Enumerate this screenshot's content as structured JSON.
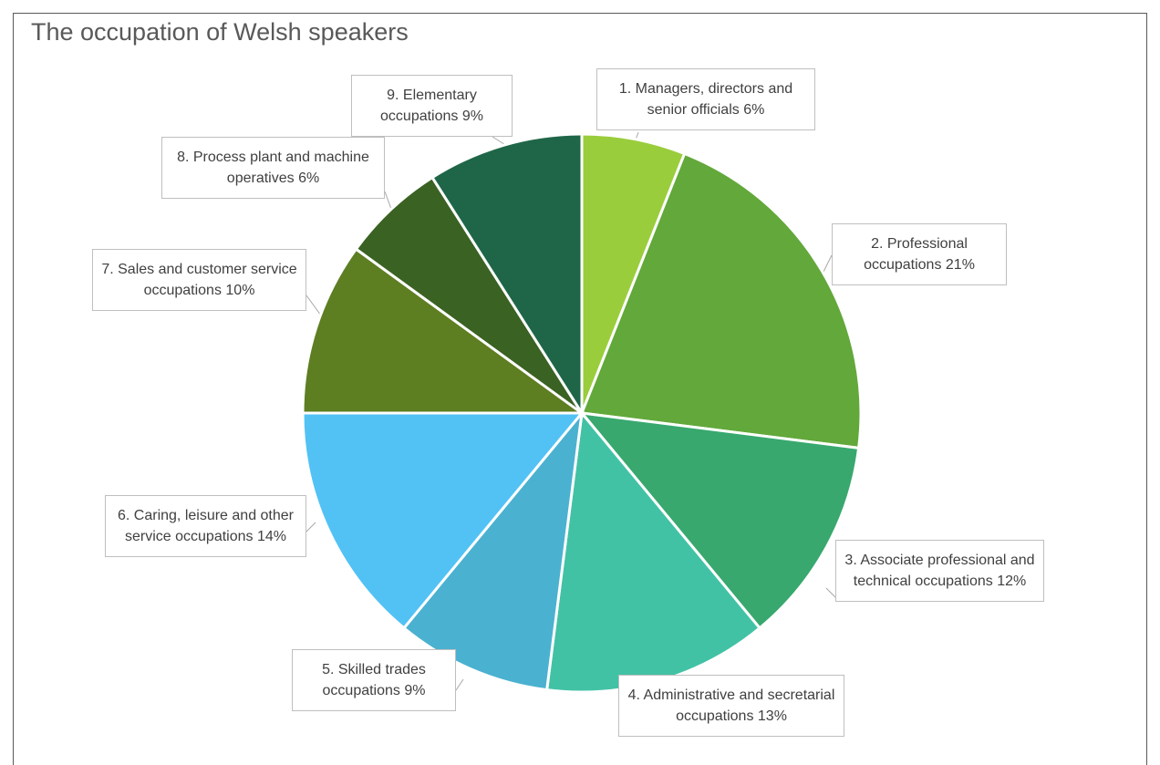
{
  "chart_data": {
    "type": "pie",
    "title": "The occupation of Welsh speakers",
    "categories": [
      "1. Managers, directors and senior officials",
      "2. Professional occupations",
      "3. Associate professional and technical occupations",
      "4. Administrative and secretarial occupations",
      "5. Skilled trades occupations",
      "6. Caring, leisure and other service occupations",
      "7. Sales and customer service occupations",
      "8. Process plant and machine operatives",
      "9. Elementary occupations"
    ],
    "values": [
      6,
      21,
      12,
      13,
      9,
      14,
      10,
      6,
      9
    ],
    "value_labels": [
      "6%",
      "21%",
      "12%",
      "13%",
      "9%",
      "14%",
      "10%",
      "6%",
      "9%"
    ],
    "colors": [
      "#9acd3c",
      "#62a83a",
      "#38a86e",
      "#42c2a5",
      "#4bb1d0",
      "#52c2f5",
      "#5e7e22",
      "#3a6222",
      "#1f6648"
    ]
  }
}
